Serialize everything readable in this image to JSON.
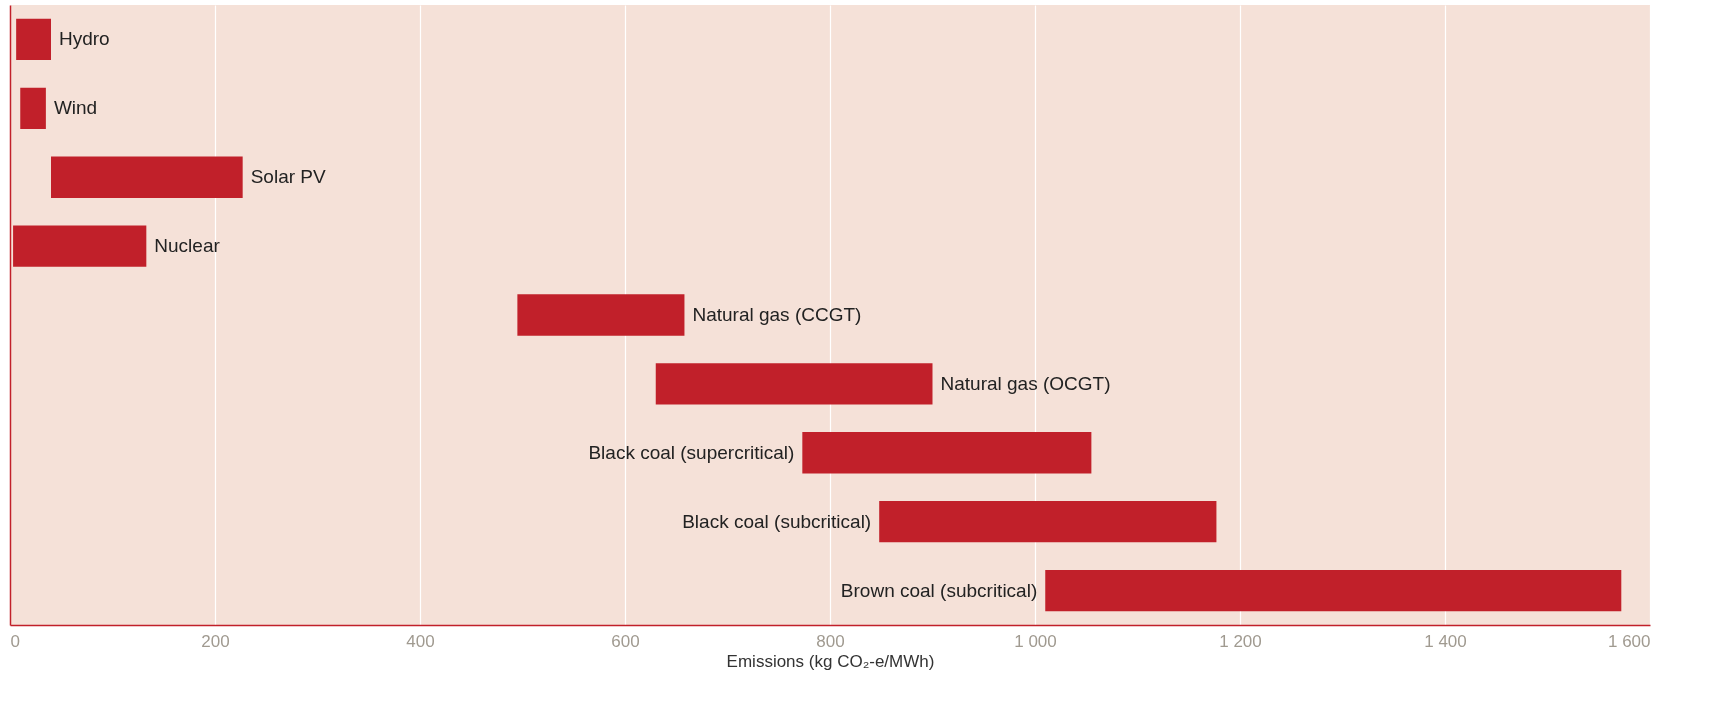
{
  "chart_data": {
    "type": "bar",
    "orientation": "horizontal",
    "categories": [
      "Hydro",
      "Wind",
      "Solar PV",
      "Nuclear",
      "Natural gas (CCGT)",
      "Natural gas (OCGT)",
      "Black coal (supercritical)",
      "Black coal (subcritical)",
      "Brown coal (subcritical)"
    ],
    "base": [
      6,
      10,
      40,
      3,
      495,
      630,
      773,
      848,
      1010
    ],
    "values": [
      34,
      25,
      187,
      130,
      163,
      270,
      282,
      329,
      562
    ],
    "color": "#c1202a",
    "xlabel": "Emissions (kg CO₂-e/MWh)",
    "xlim": [
      0,
      1600
    ],
    "xticks": [
      0,
      200,
      400,
      600,
      800,
      {
        "value": 1000,
        "label": "1 000"
      },
      {
        "value": 1200,
        "label": "1 200"
      },
      {
        "value": 1400,
        "label": "1 400"
      },
      {
        "value": 1600,
        "label": "1 600"
      }
    ],
    "grid": "x"
  }
}
